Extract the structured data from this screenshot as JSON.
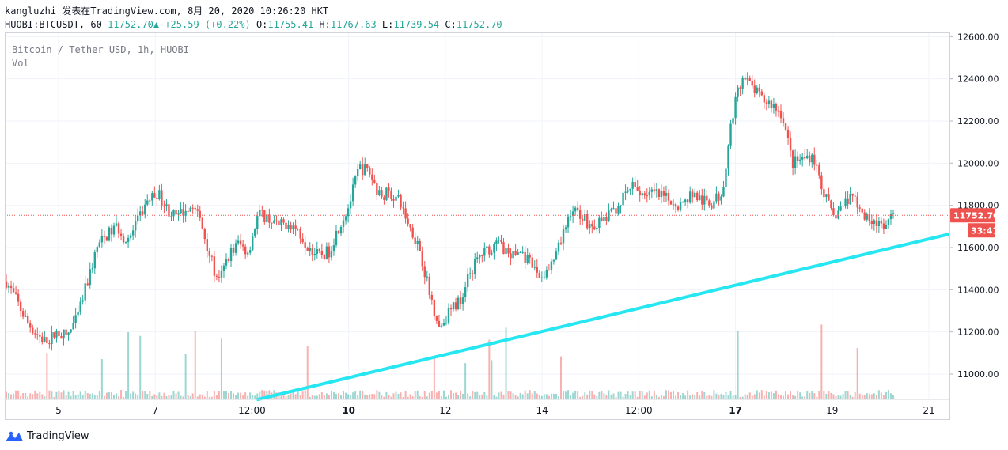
{
  "header": {
    "line1": "kangluzhi 发表在TradingView.com, 8月 20, 2020 10:26:20 HKT",
    "symbol": "HUOBI:BTCUSDT, 60",
    "last": "11752.70",
    "change": "+25.59 (+0.22%)",
    "o_label": "O:",
    "o_value": "11755.41",
    "h_label": "H:",
    "h_value": "11767.63",
    "l_label": "L:",
    "l_value": "11739.54",
    "c_label": "C:",
    "c_value": "11752.70"
  },
  "legend": {
    "series": "Bitcoin / Tether USD, 1h, HUOBI",
    "volume": "Vol"
  },
  "footer": {
    "brand": "TradingView"
  },
  "colors": {
    "up": "#26a69a",
    "down": "#ef5350",
    "trendline": "#26e6f2",
    "price_line": "#ef5350",
    "badge": "#ef5350"
  },
  "chart_data": {
    "type": "candlestick",
    "price_axis": {
      "ticks": [
        11000,
        11200,
        11400,
        11600,
        11800,
        12000,
        12200,
        12400,
        12600
      ],
      "labels": [
        "11000.00",
        "11200.00",
        "11400.00",
        "11600.00",
        "11800.00",
        "12000.00",
        "12200.00",
        "12400.00",
        "12600.00"
      ],
      "range": [
        10880,
        12620
      ]
    },
    "time_axis": {
      "labels": [
        "5",
        "7",
        "12:00",
        "10",
        "12",
        "14",
        "12:00",
        "17",
        "19",
        "21"
      ],
      "bold": [
        false,
        false,
        false,
        true,
        false,
        false,
        false,
        true,
        false,
        false
      ]
    },
    "last_price": "11752.70",
    "countdown": "33:41",
    "trend_line": {
      "from": 10880,
      "to": 11665
    },
    "close_path": [
      11440,
      11350,
      11250,
      11190,
      11150,
      11200,
      11180,
      11260,
      11430,
      11600,
      11660,
      11700,
      11620,
      11720,
      11820,
      11860,
      11780,
      11740,
      11800,
      11760,
      11600,
      11420,
      11560,
      11620,
      11580,
      11760,
      11740,
      11700,
      11720,
      11680,
      11600,
      11560,
      11580,
      11700,
      11800,
      11980,
      11960,
      11850,
      11860,
      11820,
      11700,
      11600,
      11380,
      11220,
      11300,
      11350,
      11480,
      11560,
      11600,
      11620,
      11560,
      11580,
      11520,
      11460,
      11500,
      11620,
      11780,
      11760,
      11700,
      11720,
      11760,
      11820,
      11890,
      11860,
      11860,
      11840,
      11820,
      11800,
      11860,
      11820,
      11810,
      11860,
      12220,
      12410,
      12360,
      12300,
      12280,
      12230,
      12000,
      12020,
      12040,
      11880,
      11740,
      11800,
      11860,
      11740,
      11740,
      11680,
      11752.7
    ]
  }
}
